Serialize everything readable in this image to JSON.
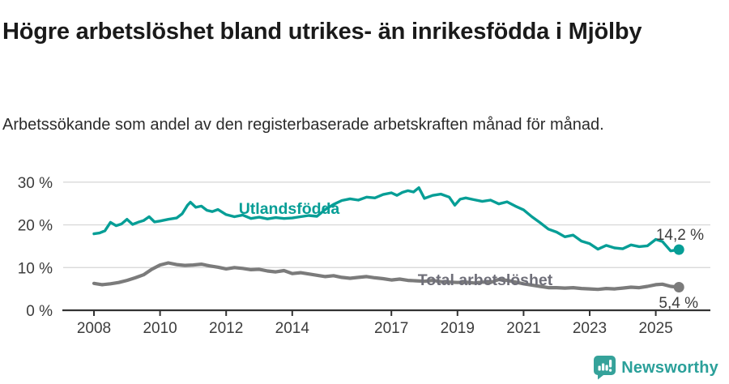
{
  "footer": {
    "brand": "Newsworthy"
  },
  "colors": {
    "teal": "#069e96",
    "gray": "#7b7b7b",
    "label_gray": "#6f6f79",
    "axis_text": "#3c3c3c",
    "grid": "#d9d9d9",
    "axis": "#333333",
    "title": "#1a1a1a",
    "logo_teal": "#35a29a"
  },
  "chart_data": {
    "type": "line",
    "title": "Högre arbetslöshet bland utrikes- än inrikesfödda i Mjölby",
    "subtitle": "Arbetssökande som andel av den registerbaserade arbetskraften månad för månad.",
    "xlabel": "",
    "ylabel": "",
    "unit": "%",
    "grid": "horizontal",
    "legend_position": "inline-labels",
    "x_axis": {
      "ticks": [
        2008,
        2010,
        2012,
        2014,
        2017,
        2019,
        2021,
        2023,
        2025
      ],
      "range": [
        2007.0,
        2026.6
      ]
    },
    "y_axis": {
      "ticks": [
        0,
        10,
        20,
        30
      ],
      "tick_suffix": " %",
      "range": [
        0,
        31.9
      ]
    },
    "series": [
      {
        "name": "Utlandsfödda",
        "color": "#069e96",
        "end_label": "14,2 %",
        "end_value": 14.2,
        "points": [
          [
            2008.0,
            17.9
          ],
          [
            2008.17,
            18.1
          ],
          [
            2008.33,
            18.6
          ],
          [
            2008.5,
            20.6
          ],
          [
            2008.67,
            19.8
          ],
          [
            2008.83,
            20.2
          ],
          [
            2009.0,
            21.3
          ],
          [
            2009.17,
            20.1
          ],
          [
            2009.33,
            20.6
          ],
          [
            2009.5,
            21.0
          ],
          [
            2009.67,
            21.9
          ],
          [
            2009.83,
            20.7
          ],
          [
            2010.0,
            20.9
          ],
          [
            2010.25,
            21.3
          ],
          [
            2010.5,
            21.6
          ],
          [
            2010.67,
            22.6
          ],
          [
            2010.83,
            24.6
          ],
          [
            2010.92,
            25.3
          ],
          [
            2011.08,
            24.1
          ],
          [
            2011.25,
            24.4
          ],
          [
            2011.42,
            23.4
          ],
          [
            2011.58,
            23.1
          ],
          [
            2011.75,
            23.6
          ],
          [
            2012.0,
            22.4
          ],
          [
            2012.25,
            21.9
          ],
          [
            2012.5,
            22.3
          ],
          [
            2012.75,
            21.5
          ],
          [
            2013.0,
            21.8
          ],
          [
            2013.25,
            21.4
          ],
          [
            2013.5,
            21.7
          ],
          [
            2013.75,
            21.5
          ],
          [
            2014.0,
            21.6
          ],
          [
            2014.25,
            21.9
          ],
          [
            2014.5,
            22.2
          ],
          [
            2014.75,
            22.0
          ],
          [
            2015.0,
            23.6
          ],
          [
            2015.25,
            24.8
          ],
          [
            2015.5,
            25.7
          ],
          [
            2015.75,
            26.1
          ],
          [
            2016.0,
            25.8
          ],
          [
            2016.25,
            26.5
          ],
          [
            2016.5,
            26.3
          ],
          [
            2016.75,
            27.1
          ],
          [
            2017.0,
            27.5
          ],
          [
            2017.17,
            26.9
          ],
          [
            2017.33,
            27.6
          ],
          [
            2017.5,
            28.0
          ],
          [
            2017.67,
            27.7
          ],
          [
            2017.83,
            28.7
          ],
          [
            2018.0,
            26.2
          ],
          [
            2018.25,
            26.9
          ],
          [
            2018.5,
            27.2
          ],
          [
            2018.75,
            26.5
          ],
          [
            2018.92,
            24.6
          ],
          [
            2019.08,
            26.0
          ],
          [
            2019.25,
            26.3
          ],
          [
            2019.5,
            25.9
          ],
          [
            2019.75,
            25.5
          ],
          [
            2020.0,
            25.8
          ],
          [
            2020.25,
            24.9
          ],
          [
            2020.5,
            25.4
          ],
          [
            2020.75,
            24.4
          ],
          [
            2021.0,
            23.5
          ],
          [
            2021.25,
            21.9
          ],
          [
            2021.5,
            20.5
          ],
          [
            2021.75,
            19.0
          ],
          [
            2022.0,
            18.3
          ],
          [
            2022.25,
            17.2
          ],
          [
            2022.5,
            17.6
          ],
          [
            2022.75,
            16.2
          ],
          [
            2023.0,
            15.6
          ],
          [
            2023.25,
            14.3
          ],
          [
            2023.5,
            15.2
          ],
          [
            2023.75,
            14.6
          ],
          [
            2024.0,
            14.4
          ],
          [
            2024.25,
            15.3
          ],
          [
            2024.5,
            14.9
          ],
          [
            2024.75,
            15.1
          ],
          [
            2025.0,
            16.6
          ],
          [
            2025.2,
            16.1
          ],
          [
            2025.45,
            13.9
          ],
          [
            2025.7,
            14.2
          ]
        ]
      },
      {
        "name": "Total arbetslöshet",
        "color": "#7b7b7b",
        "end_label": "5,4 %",
        "end_value": 5.4,
        "points": [
          [
            2008.0,
            6.3
          ],
          [
            2008.25,
            6.0
          ],
          [
            2008.5,
            6.2
          ],
          [
            2008.75,
            6.5
          ],
          [
            2009.0,
            7.0
          ],
          [
            2009.25,
            7.6
          ],
          [
            2009.5,
            8.3
          ],
          [
            2009.75,
            9.6
          ],
          [
            2010.0,
            10.6
          ],
          [
            2010.25,
            11.1
          ],
          [
            2010.5,
            10.7
          ],
          [
            2010.75,
            10.5
          ],
          [
            2011.0,
            10.6
          ],
          [
            2011.25,
            10.8
          ],
          [
            2011.5,
            10.4
          ],
          [
            2011.75,
            10.1
          ],
          [
            2012.0,
            9.7
          ],
          [
            2012.25,
            10.0
          ],
          [
            2012.5,
            9.8
          ],
          [
            2012.75,
            9.5
          ],
          [
            2013.0,
            9.6
          ],
          [
            2013.25,
            9.2
          ],
          [
            2013.5,
            9.0
          ],
          [
            2013.75,
            9.3
          ],
          [
            2014.0,
            8.6
          ],
          [
            2014.25,
            8.8
          ],
          [
            2014.5,
            8.5
          ],
          [
            2014.75,
            8.2
          ],
          [
            2015.0,
            7.9
          ],
          [
            2015.25,
            8.1
          ],
          [
            2015.5,
            7.7
          ],
          [
            2015.75,
            7.5
          ],
          [
            2016.0,
            7.7
          ],
          [
            2016.25,
            7.9
          ],
          [
            2016.5,
            7.6
          ],
          [
            2016.75,
            7.4
          ],
          [
            2017.0,
            7.1
          ],
          [
            2017.25,
            7.3
          ],
          [
            2017.5,
            7.0
          ],
          [
            2017.75,
            6.9
          ],
          [
            2018.0,
            6.8
          ],
          [
            2018.25,
            7.0
          ],
          [
            2018.5,
            6.7
          ],
          [
            2018.75,
            6.6
          ],
          [
            2019.0,
            6.5
          ],
          [
            2019.25,
            6.6
          ],
          [
            2019.5,
            6.4
          ],
          [
            2019.75,
            6.6
          ],
          [
            2020.0,
            6.5
          ],
          [
            2020.25,
            7.2
          ],
          [
            2020.5,
            7.0
          ],
          [
            2020.75,
            6.6
          ],
          [
            2021.0,
            6.2
          ],
          [
            2021.25,
            5.9
          ],
          [
            2021.5,
            5.6
          ],
          [
            2021.75,
            5.3
          ],
          [
            2022.0,
            5.3
          ],
          [
            2022.25,
            5.2
          ],
          [
            2022.5,
            5.3
          ],
          [
            2022.75,
            5.1
          ],
          [
            2023.0,
            5.0
          ],
          [
            2023.25,
            4.9
          ],
          [
            2023.5,
            5.1
          ],
          [
            2023.75,
            5.0
          ],
          [
            2024.0,
            5.2
          ],
          [
            2024.25,
            5.4
          ],
          [
            2024.5,
            5.3
          ],
          [
            2024.75,
            5.6
          ],
          [
            2025.0,
            6.0
          ],
          [
            2025.2,
            6.1
          ],
          [
            2025.45,
            5.6
          ],
          [
            2025.7,
            5.4
          ]
        ]
      }
    ]
  }
}
